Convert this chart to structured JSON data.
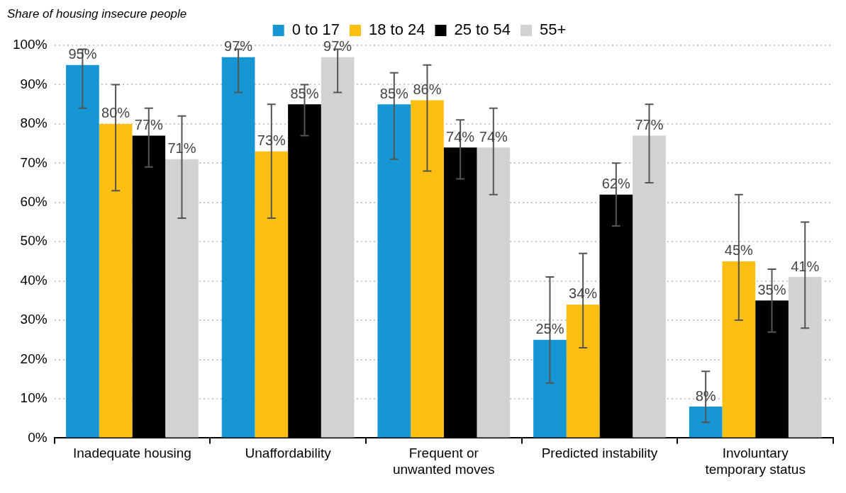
{
  "chart_data": {
    "type": "bar",
    "title": "Share of housing insecure people",
    "categories": [
      "Inadequate housing",
      "Unaffordability",
      "Frequent or unwanted moves",
      "Predicted instability",
      "Involuntary temporary status"
    ],
    "series": [
      {
        "name": "0 to 17",
        "color": "#1696d2",
        "values": [
          95,
          97,
          85,
          25,
          8
        ],
        "value_labels": [
          "95%",
          "97%",
          "85%",
          "25%",
          "8%"
        ],
        "errors": [
          [
            84,
            99
          ],
          [
            88,
            99
          ],
          [
            71,
            93
          ],
          [
            14,
            41
          ],
          [
            4,
            17
          ]
        ]
      },
      {
        "name": "18 to 24",
        "color": "#fdbf11",
        "values": [
          80,
          73,
          86,
          34,
          45
        ],
        "value_labels": [
          "80%",
          "73%",
          "86%",
          "34%",
          "45%"
        ],
        "errors": [
          [
            63,
            90
          ],
          [
            56,
            85
          ],
          [
            68,
            95
          ],
          [
            23,
            47
          ],
          [
            30,
            62
          ]
        ]
      },
      {
        "name": "25 to 54",
        "color": "#000000",
        "values": [
          77,
          85,
          74,
          62,
          35
        ],
        "value_labels": [
          "77%",
          "85%",
          "74%",
          "62%",
          "35%"
        ],
        "errors": [
          [
            69,
            84
          ],
          [
            77,
            90
          ],
          [
            66,
            81
          ],
          [
            54,
            70
          ],
          [
            27,
            43
          ]
        ]
      },
      {
        "name": "55+",
        "color": "#d2d2d2",
        "values": [
          71,
          97,
          74,
          77,
          41
        ],
        "value_labels": [
          "71%",
          "97%",
          "74%",
          "77%",
          "41%"
        ],
        "errors": [
          [
            56,
            82
          ],
          [
            88,
            99
          ],
          [
            62,
            84
          ],
          [
            65,
            85
          ],
          [
            28,
            55
          ]
        ]
      }
    ],
    "ylim": [
      0,
      100
    ],
    "yticks": [
      {
        "value": 0,
        "label": "0%"
      },
      {
        "value": 10,
        "label": "10%"
      },
      {
        "value": 20,
        "label": "20%"
      },
      {
        "value": 30,
        "label": "30%"
      },
      {
        "value": 40,
        "label": "40%"
      },
      {
        "value": 50,
        "label": "50%"
      },
      {
        "value": 60,
        "label": "60%"
      },
      {
        "value": 70,
        "label": "70%"
      },
      {
        "value": 80,
        "label": "80%"
      },
      {
        "value": 90,
        "label": "90%"
      },
      {
        "value": 100,
        "label": "100%"
      }
    ],
    "grid": "y",
    "legend": "top"
  }
}
